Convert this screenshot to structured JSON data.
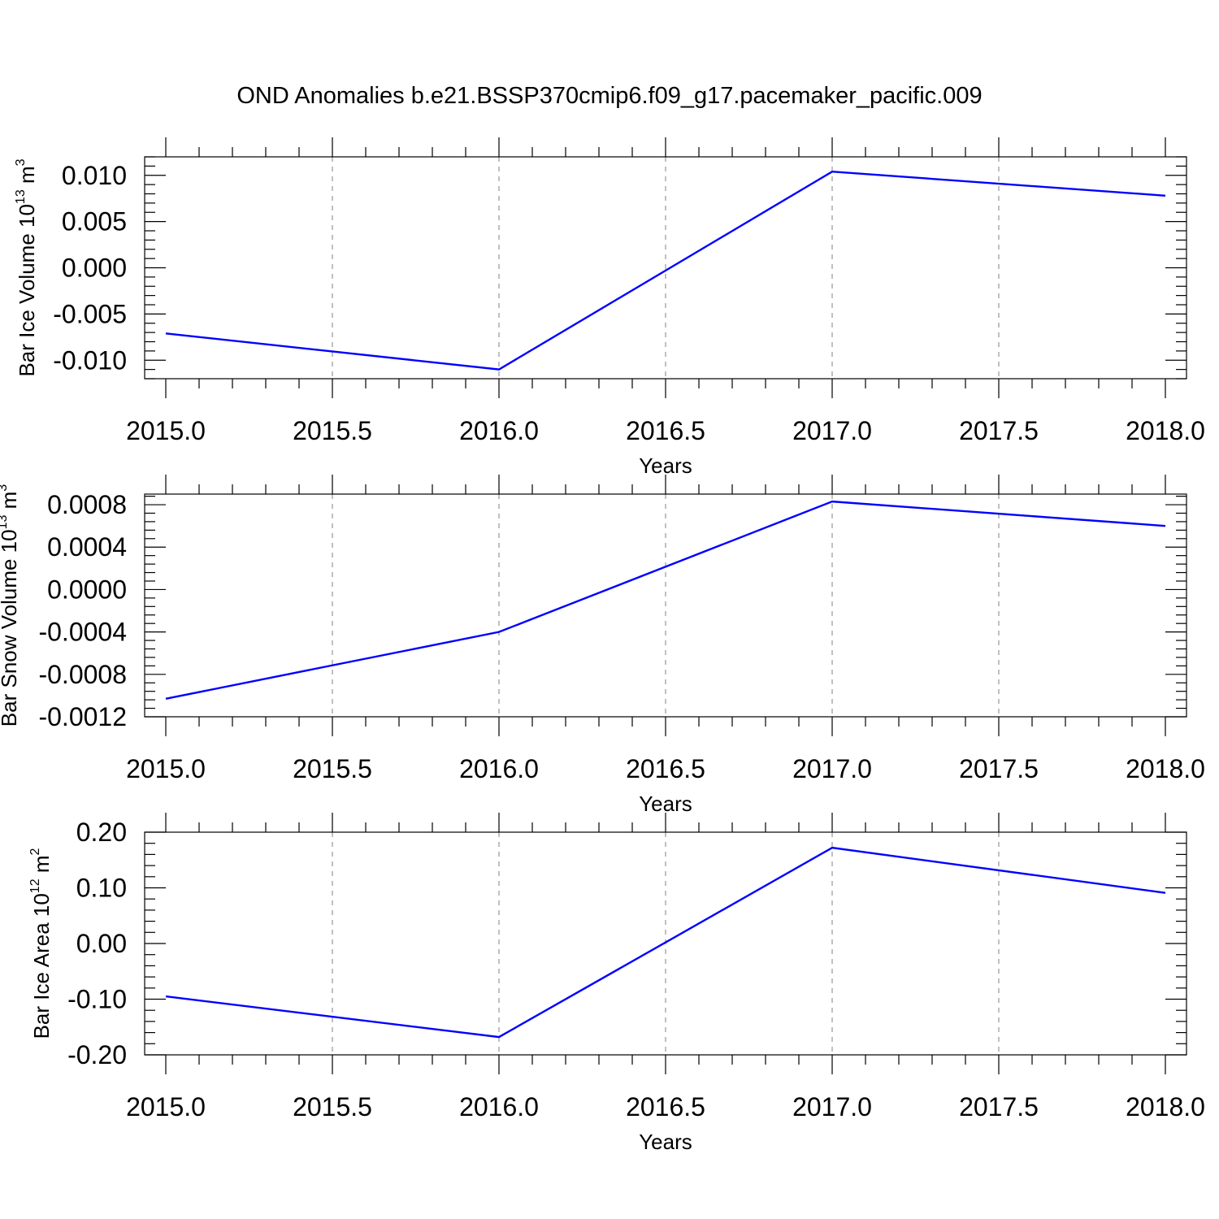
{
  "title": "OND Anomalies b.e21.BSSP370cmip6.f09_g17.pacemaker_pacific.009",
  "colors": {
    "line": "#0000ff",
    "axis": "#000000",
    "grid": "#808080"
  },
  "chart_data": [
    {
      "type": "line",
      "ylabel": "Bar Ice Volume",
      "ylabel_unit": {
        "base": "10",
        "exp": "13",
        "unit": "m",
        "unit_exp": "3"
      },
      "xlabel": "Years",
      "xlim": [
        2015.0,
        2018.0
      ],
      "ylim": [
        -0.012,
        0.012
      ],
      "xticks": [
        "2015.0",
        "2015.5",
        "2016.0",
        "2016.5",
        "2017.0",
        "2017.5",
        "2018.0"
      ],
      "yticks": [
        "-0.010",
        "-0.005",
        "0.000",
        "0.005",
        "0.010"
      ],
      "grid": "vertical-dashed",
      "series": [
        {
          "x": [
            2015,
            2016,
            2017,
            2018
          ],
          "values": [
            -0.0071,
            -0.011,
            0.0104,
            0.0078
          ]
        }
      ]
    },
    {
      "type": "line",
      "ylabel": "Bar Snow Volume",
      "ylabel_unit": {
        "base": "10",
        "exp": "13",
        "unit": "m",
        "unit_exp": "3"
      },
      "xlabel": "Years",
      "xlim": [
        2015.0,
        2018.0
      ],
      "ylim": [
        -0.0012,
        0.0009
      ],
      "xticks": [
        "2015.0",
        "2015.5",
        "2016.0",
        "2016.5",
        "2017.0",
        "2017.5",
        "2018.0"
      ],
      "yticks": [
        "-0.0012",
        "-0.0008",
        "-0.0004",
        "0.0000",
        "0.0004",
        "0.0008"
      ],
      "grid": "vertical-dashed",
      "series": [
        {
          "x": [
            2015,
            2016,
            2017,
            2018
          ],
          "values": [
            -0.00103,
            -0.0004,
            0.00083,
            0.0006
          ]
        }
      ]
    },
    {
      "type": "line",
      "ylabel": "Bar Ice Area",
      "ylabel_unit": {
        "base": "10",
        "exp": "12",
        "unit": "m",
        "unit_exp": "2"
      },
      "xlabel": "Years",
      "xlim": [
        2015.0,
        2018.0
      ],
      "ylim": [
        -0.2,
        0.2
      ],
      "xticks": [
        "2015.0",
        "2015.5",
        "2016.0",
        "2016.5",
        "2017.0",
        "2017.5",
        "2018.0"
      ],
      "yticks": [
        "-0.20",
        "-0.10",
        "0.00",
        "0.10",
        "0.20"
      ],
      "grid": "vertical-dashed",
      "series": [
        {
          "x": [
            2015,
            2016,
            2017,
            2018
          ],
          "values": [
            -0.095,
            -0.168,
            0.172,
            0.091
          ]
        }
      ]
    }
  ]
}
